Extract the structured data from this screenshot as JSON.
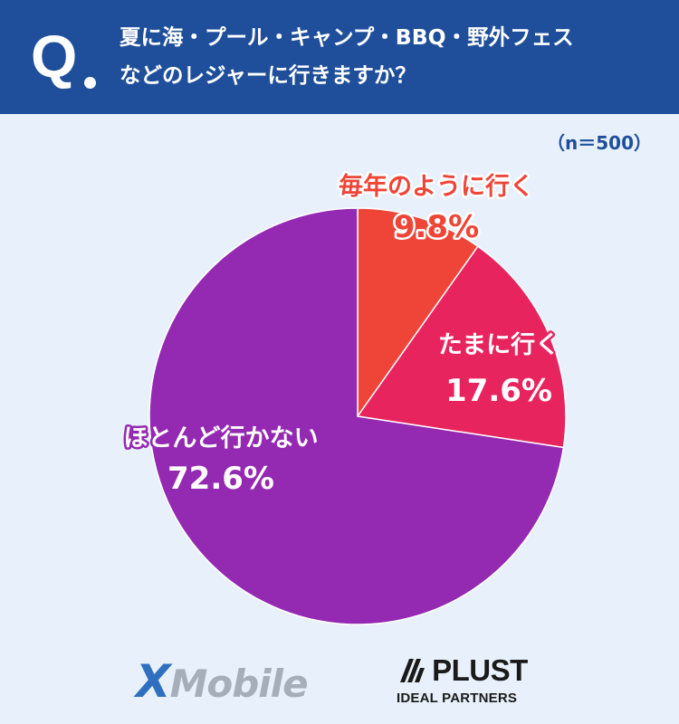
{
  "header": {
    "q_mark": "Q",
    "question_lines": [
      "夏に海・プール・キャンプ・BBQ・野外フェス",
      "などのレジャーに行きますか？"
    ]
  },
  "sample_size": "（n＝500）",
  "chart_data": {
    "type": "pie",
    "title": "",
    "slices": [
      {
        "label": "毎年のように行く",
        "value": 9.8,
        "value_label": "9.8%",
        "color": "#ef4538"
      },
      {
        "label": "たまに行く",
        "value": 17.6,
        "value_label": "17.6%",
        "color": "#e8245e"
      },
      {
        "label": "ほとんど行かない",
        "value": 72.6,
        "value_label": "72.6%",
        "color": "#9429b2"
      }
    ],
    "start": "12 o'clock, clockwise"
  },
  "logos": {
    "xmobile_x": "X",
    "xmobile_rest": "Mobile",
    "plust_name": "PLUST",
    "plust_sub": "IDEAL PARTNERS"
  }
}
